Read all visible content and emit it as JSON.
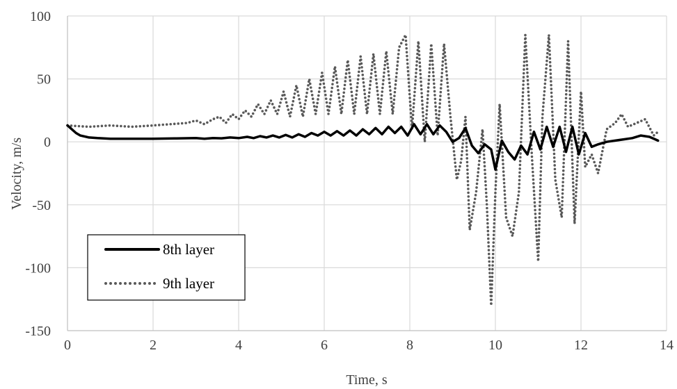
{
  "chart_data": {
    "type": "line",
    "title": "",
    "xlabel": "Time, s",
    "ylabel": "Velocity, m/s",
    "xlim": [
      0,
      14
    ],
    "ylim": [
      -150,
      100
    ],
    "xticks": [
      0,
      2,
      4,
      6,
      8,
      10,
      12,
      14
    ],
    "yticks": [
      -150,
      -100,
      -50,
      0,
      50,
      100
    ],
    "grid": true,
    "legend_position": "bottom-left",
    "series": [
      {
        "name": "8th layer",
        "style": "solid",
        "color": "#000000",
        "x": [
          0,
          0.1,
          0.2,
          0.3,
          0.5,
          0.7,
          1.0,
          1.5,
          2.0,
          2.5,
          3.0,
          3.2,
          3.4,
          3.6,
          3.8,
          4.0,
          4.2,
          4.35,
          4.5,
          4.65,
          4.8,
          4.95,
          5.1,
          5.25,
          5.4,
          5.55,
          5.7,
          5.85,
          6.0,
          6.15,
          6.3,
          6.45,
          6.6,
          6.75,
          6.9,
          7.05,
          7.2,
          7.35,
          7.5,
          7.65,
          7.8,
          7.95,
          8.1,
          8.25,
          8.4,
          8.55,
          8.7,
          8.85,
          9.0,
          9.15,
          9.3,
          9.45,
          9.6,
          9.75,
          9.9,
          10.0,
          10.15,
          10.3,
          10.45,
          10.6,
          10.75,
          10.9,
          11.05,
          11.2,
          11.35,
          11.5,
          11.65,
          11.8,
          11.95,
          12.1,
          12.25,
          12.4,
          12.6,
          12.8,
          13.0,
          13.2,
          13.4,
          13.6,
          13.8
        ],
        "values": [
          13,
          10,
          7,
          5,
          3.5,
          3,
          2.5,
          2.5,
          2.5,
          2.7,
          3,
          2.5,
          3,
          2.8,
          3.5,
          3,
          4,
          3,
          4.5,
          3.5,
          5,
          3.5,
          5.5,
          3.5,
          6,
          4,
          7,
          5,
          8,
          5,
          8.5,
          5,
          9,
          5,
          10,
          6,
          11,
          6,
          12,
          7,
          12,
          5,
          14,
          6,
          14,
          6,
          13,
          8,
          0,
          3,
          11,
          -3,
          -9,
          -2,
          -6,
          -22,
          1,
          -8,
          -14,
          -3,
          -10,
          8,
          -6,
          12,
          -4,
          12,
          -8,
          12,
          -10,
          7,
          -4,
          -2,
          0,
          1,
          2,
          3,
          5,
          4,
          1
        ]
      },
      {
        "name": "9th layer",
        "style": "dotted",
        "color": "#595959",
        "x": [
          0,
          0.5,
          1.0,
          1.5,
          2.0,
          2.4,
          2.8,
          3.0,
          3.2,
          3.4,
          3.55,
          3.7,
          3.85,
          4.0,
          4.15,
          4.3,
          4.45,
          4.6,
          4.75,
          4.9,
          5.05,
          5.2,
          5.35,
          5.5,
          5.65,
          5.8,
          5.95,
          6.1,
          6.25,
          6.4,
          6.55,
          6.7,
          6.85,
          7.0,
          7.15,
          7.3,
          7.45,
          7.6,
          7.75,
          7.9,
          8.05,
          8.2,
          8.35,
          8.5,
          8.65,
          8.8,
          8.95,
          9.1,
          9.2,
          9.3,
          9.4,
          9.55,
          9.7,
          9.8,
          9.9,
          10.0,
          10.1,
          10.25,
          10.4,
          10.55,
          10.7,
          10.85,
          11.0,
          11.1,
          11.25,
          11.4,
          11.55,
          11.7,
          11.85,
          12.0,
          12.1,
          12.25,
          12.4,
          12.6,
          12.8,
          12.95,
          13.1,
          13.3,
          13.5,
          13.7,
          13.8
        ],
        "values": [
          13,
          12,
          13,
          12,
          13,
          14,
          15,
          17,
          14,
          18,
          20,
          15,
          22,
          18,
          25,
          20,
          30,
          22,
          33,
          22,
          40,
          20,
          45,
          20,
          50,
          22,
          55,
          22,
          60,
          22,
          65,
          22,
          68,
          22,
          70,
          22,
          72,
          22,
          75,
          85,
          10,
          80,
          0,
          78,
          5,
          78,
          20,
          -30,
          -15,
          20,
          -70,
          -40,
          10,
          -50,
          -130,
          -40,
          30,
          -60,
          -75,
          -40,
          85,
          -10,
          -95,
          20,
          85,
          -30,
          -60,
          80,
          -65,
          40,
          -20,
          -10,
          -25,
          10,
          15,
          22,
          12,
          15,
          18,
          5,
          8
        ]
      }
    ]
  }
}
